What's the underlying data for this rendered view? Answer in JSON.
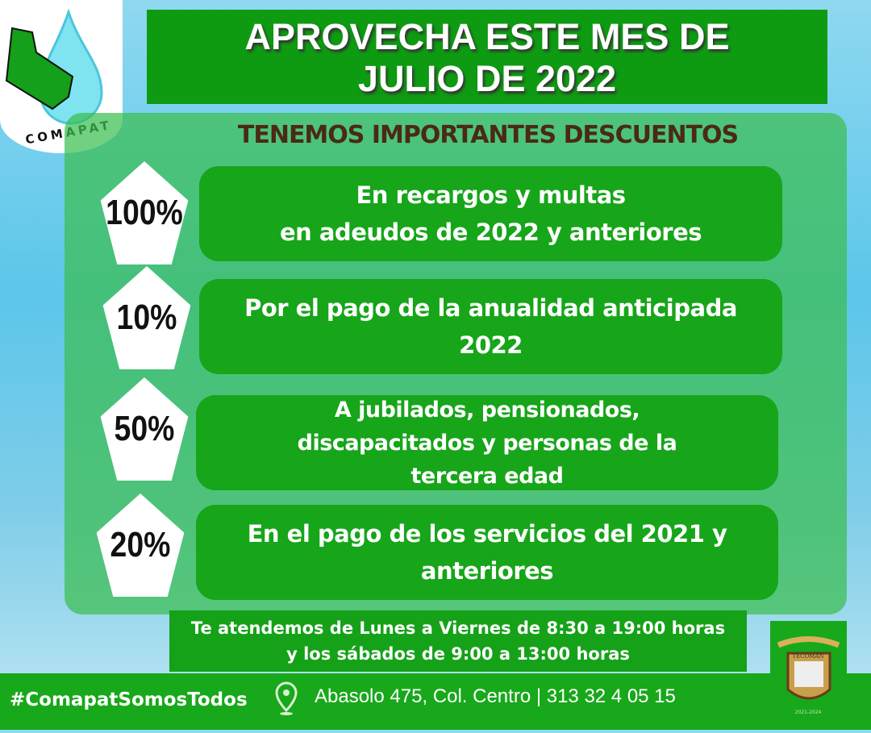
{
  "logo": {
    "text": "COMAPAT"
  },
  "banner": {
    "line1": "APROVECHA ESTE MES DE",
    "line2": "JULIO DE 2022"
  },
  "subtitle": "TENEMOS IMPORTANTES DESCUENTOS",
  "discounts": [
    {
      "percent": "100%",
      "lines": [
        "En recargos y multas",
        "en adeudos de 2022 y anteriores"
      ]
    },
    {
      "percent": "10%",
      "lines": [
        "Por el pago de la anualidad anticipada",
        "2022"
      ]
    },
    {
      "percent": "50%",
      "lines": [
        "A jubilados, pensionados,",
        "discapacitados y personas de la",
        "tercera edad"
      ]
    },
    {
      "percent": "20%",
      "lines": [
        "En el pago de los servicios del 2021 y",
        "anteriores"
      ]
    }
  ],
  "hours": {
    "line1": "Te atendemos de Lunes a Viernes de 8:30 a 19:00 horas",
    "line2": "y los  sábados de 9:00 a 13:00 horas"
  },
  "footer": {
    "hashtag": "#ComapatSomosTodos",
    "address": "Abasolo 475, Col. Centro | 313 32 4 05 15",
    "location_icon": "map-pin-icon",
    "crest_text": "TECOMAN",
    "crest_years": "2021-2024"
  },
  "colors": {
    "green": "#18a81b",
    "title_brown": "#4a2a12"
  }
}
